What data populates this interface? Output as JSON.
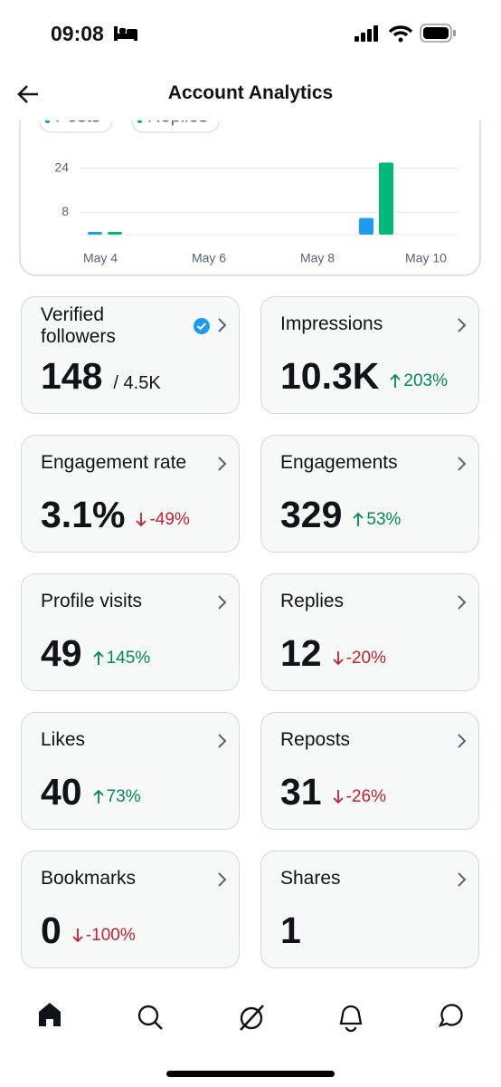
{
  "status_bar": {
    "time": "09:08"
  },
  "header": {
    "title": "Account Analytics"
  },
  "chart_data": {
    "type": "bar",
    "categories": [
      "May 4",
      null,
      "May 6",
      null,
      "May 8",
      null,
      "May 10"
    ],
    "series": [
      {
        "name": "Posts",
        "color": "#1d9bf0",
        "values": [
          0,
          null,
          null,
          null,
          null,
          6,
          null
        ]
      },
      {
        "name": "Replies",
        "color": "#00ba7c",
        "values": [
          0,
          null,
          null,
          null,
          null,
          26,
          null
        ]
      }
    ],
    "ylim": [
      0,
      27
    ],
    "yticks": [
      8,
      24
    ],
    "grid": true
  },
  "cards": [
    {
      "title": "Verified followers",
      "value": "148",
      "total": "/ 4.5K"
    },
    {
      "title": "Impressions",
      "value": "10.3K",
      "change": "203%"
    },
    {
      "title": "Engagement rate",
      "value": "3.1%",
      "change": "-49%"
    },
    {
      "title": "Engagements",
      "value": "329",
      "change": "53%"
    },
    {
      "title": "Profile visits",
      "value": "49",
      "change": "145%"
    },
    {
      "title": "Replies",
      "value": "12",
      "change": "-20%"
    },
    {
      "title": "Likes",
      "value": "40",
      "change": "73%"
    },
    {
      "title": "Reposts",
      "value": "31",
      "change": "-26%"
    },
    {
      "title": "Bookmarks",
      "value": "0",
      "change": "-100%"
    },
    {
      "title": "Shares",
      "value": "1"
    }
  ]
}
